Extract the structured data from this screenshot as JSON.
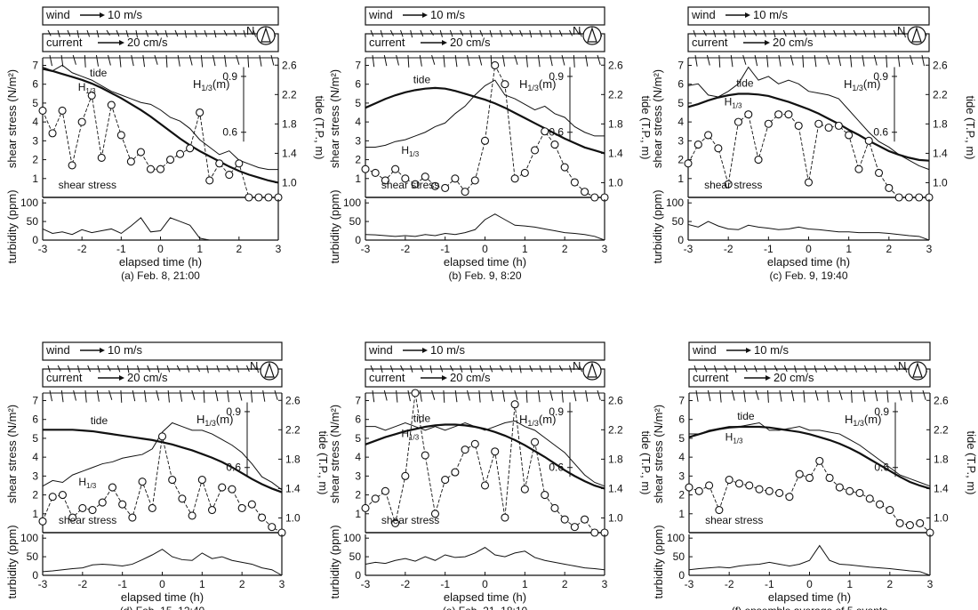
{
  "figure": {
    "wind_label": "wind",
    "wind_scale": "10 m/s",
    "current_label": "current",
    "current_scale": "20 cm/s",
    "north_label": "N",
    "h13_label": "H",
    "h13_sub": "1/3",
    "h13_unit": "(m)",
    "tide_label": "tide",
    "shear_label": "shear stress",
    "y_left_top": "shear stress (N/m²)",
    "y_left_bottom": "turbidity (ppm)",
    "y_right": "tide (T.P., m)",
    "x_label": "elapsed time (h)",
    "x_ticks": [
      "-3",
      "-2",
      "-1",
      "0",
      "1",
      "2",
      "3"
    ],
    "shear_ticks": [
      "1",
      "2",
      "3",
      "4",
      "5",
      "6",
      "7"
    ],
    "turb_ticks": [
      "0",
      "50",
      "100"
    ],
    "tide_ticks": [
      "1.0",
      "1.4",
      "1.8",
      "2.2",
      "2.6"
    ],
    "h13_ticks": [
      "0.9",
      "0.6"
    ]
  },
  "chart_data": [
    {
      "type": "line",
      "caption": "(a) Feb. 8, 21:00",
      "x": [
        -3,
        -2.75,
        -2.5,
        -2.25,
        -2,
        -1.75,
        -1.5,
        -1.25,
        -1,
        -0.75,
        -0.5,
        -0.25,
        0,
        0.25,
        0.5,
        0.75,
        1,
        1.25,
        1.5,
        1.75,
        2,
        2.25,
        2.5,
        2.75,
        3
      ],
      "shear": [
        4.6,
        3.4,
        4.6,
        1.7,
        4.0,
        5.4,
        2.1,
        4.9,
        3.3,
        1.9,
        2.4,
        1.5,
        1.5,
        2.0,
        2.3,
        2.6,
        4.5,
        0.9,
        1.8,
        1.2,
        1.8,
        0,
        0,
        0,
        0
      ],
      "tide": [
        2.55,
        2.52,
        2.48,
        2.44,
        2.4,
        2.35,
        2.29,
        2.22,
        2.15,
        2.07,
        1.99,
        1.9,
        1.8,
        1.7,
        1.6,
        1.51,
        1.43,
        1.36,
        1.29,
        1.22,
        1.16,
        1.11,
        1.07,
        1.03,
        1.0
      ],
      "h13": [
        0.95,
        0.93,
        0.96,
        0.92,
        0.9,
        0.88,
        0.85,
        0.82,
        0.8,
        0.78,
        0.76,
        0.75,
        0.72,
        0.68,
        0.66,
        0.62,
        0.56,
        0.52,
        0.48,
        0.5,
        0.45,
        0.43,
        0.41,
        0.4,
        0.4
      ],
      "turbidity": [
        30,
        18,
        22,
        15,
        28,
        20,
        25,
        30,
        18,
        38,
        60,
        22,
        25,
        60,
        50,
        40,
        5,
        0,
        0,
        0,
        0,
        0,
        0,
        0,
        0
      ],
      "wind_dirs": [
        45,
        60,
        50,
        70,
        55,
        65,
        40,
        50,
        60,
        70,
        55,
        45,
        60,
        50,
        70,
        60,
        55,
        65,
        45,
        50,
        60,
        55,
        65,
        50
      ],
      "current_dirs": [
        120,
        110,
        130,
        100,
        115,
        125,
        105,
        120,
        110,
        130,
        100,
        115,
        125,
        105,
        120,
        110,
        130,
        100,
        115,
        125
      ]
    },
    {
      "type": "line",
      "caption": "(b) Feb. 9, 8:20",
      "x": [
        -3,
        -2.75,
        -2.5,
        -2.25,
        -2,
        -1.75,
        -1.5,
        -1.25,
        -1,
        -0.75,
        -0.5,
        -0.25,
        0,
        0.25,
        0.5,
        0.75,
        1,
        1.25,
        1.5,
        1.75,
        2,
        2.25,
        2.5,
        2.75,
        3
      ],
      "shear": [
        1.5,
        1.3,
        0.9,
        1.5,
        1.0,
        0.7,
        1.1,
        0.6,
        0.5,
        1.0,
        0.3,
        0.9,
        3.0,
        7.0,
        6.0,
        1.0,
        1.3,
        2.5,
        3.5,
        2.8,
        1.6,
        0.8,
        0.3,
        0.0,
        0.0
      ],
      "tide": [
        2.02,
        2.08,
        2.14,
        2.19,
        2.23,
        2.26,
        2.28,
        2.29,
        2.28,
        2.25,
        2.21,
        2.17,
        2.13,
        2.08,
        2.02,
        1.95,
        1.88,
        1.81,
        1.74,
        1.67,
        1.6,
        1.54,
        1.48,
        1.44,
        1.4
      ],
      "h13": [
        0.52,
        0.52,
        0.53,
        0.55,
        0.56,
        0.58,
        0.6,
        0.63,
        0.65,
        0.7,
        0.74,
        0.8,
        0.85,
        0.88,
        0.8,
        0.78,
        0.75,
        0.72,
        0.74,
        0.7,
        0.68,
        0.63,
        0.6,
        0.58,
        0.58
      ],
      "turbidity": [
        15,
        14,
        12,
        10,
        12,
        10,
        15,
        12,
        18,
        15,
        20,
        28,
        55,
        70,
        55,
        40,
        38,
        35,
        30,
        25,
        20,
        18,
        15,
        10,
        0
      ],
      "wind_dirs": [
        50,
        60,
        45,
        55,
        65,
        50,
        40,
        60,
        55,
        45,
        65,
        50,
        60,
        55,
        45,
        50,
        65,
        55,
        60,
        50,
        45,
        55,
        60,
        50
      ],
      "current_dirs": [
        110,
        120,
        125,
        100,
        115,
        130,
        105,
        110,
        120,
        125,
        100,
        115,
        130,
        105,
        110,
        120,
        125,
        100,
        115,
        130
      ]
    },
    {
      "type": "line",
      "caption": "(c) Feb. 9, 19:40",
      "x": [
        -3,
        -2.75,
        -2.5,
        -2.25,
        -2,
        -1.75,
        -1.5,
        -1.25,
        -1,
        -0.75,
        -0.5,
        -0.25,
        0,
        0.25,
        0.5,
        0.75,
        1,
        1.25,
        1.5,
        1.75,
        2,
        2.25,
        2.5,
        2.75,
        3
      ],
      "shear": [
        1.8,
        2.8,
        3.3,
        2.6,
        0.7,
        4.0,
        4.4,
        2.0,
        3.9,
        4.4,
        4.4,
        3.8,
        0.8,
        3.9,
        3.7,
        3.8,
        3.3,
        1.5,
        3.0,
        1.3,
        0.5,
        0.0,
        0.0,
        0.0,
        0.0
      ],
      "tide": [
        2.03,
        2.07,
        2.12,
        2.16,
        2.19,
        2.21,
        2.21,
        2.2,
        2.18,
        2.14,
        2.1,
        2.05,
        2.0,
        1.94,
        1.87,
        1.8,
        1.72,
        1.65,
        1.57,
        1.5,
        1.43,
        1.38,
        1.34,
        1.31,
        1.3
      ],
      "h13": [
        0.85,
        0.86,
        0.8,
        0.79,
        0.82,
        0.86,
        0.95,
        0.88,
        0.9,
        0.86,
        0.88,
        0.86,
        0.82,
        0.81,
        0.8,
        0.78,
        0.72,
        0.66,
        0.6,
        0.55,
        0.52,
        0.48,
        0.45,
        0.42,
        0.4
      ],
      "turbidity": [
        42,
        35,
        50,
        38,
        30,
        28,
        40,
        35,
        32,
        28,
        30,
        35,
        30,
        28,
        25,
        22,
        22,
        20,
        20,
        20,
        18,
        15,
        12,
        10,
        0
      ],
      "wind_dirs": [
        55,
        45,
        60,
        50,
        70,
        60,
        45,
        55,
        65,
        50,
        60,
        45,
        55,
        65,
        50,
        60,
        45,
        55,
        70,
        60,
        50,
        65,
        55,
        45
      ],
      "current_dirs": [
        115,
        125,
        100,
        110,
        130,
        120,
        105,
        115,
        125,
        100,
        110,
        130,
        120,
        105,
        115,
        125,
        100,
        110,
        130,
        120
      ]
    },
    {
      "type": "line",
      "caption": "(d) Feb. 15, 12:40",
      "x": [
        -3,
        -2.75,
        -2.5,
        -2.25,
        -2,
        -1.75,
        -1.5,
        -1.25,
        -1,
        -0.75,
        -0.5,
        -0.25,
        0,
        0.25,
        0.5,
        0.75,
        1,
        1.25,
        1.5,
        1.75,
        2,
        2.25,
        2.5,
        2.75,
        3
      ],
      "shear": [
        0.6,
        1.9,
        2.0,
        0.8,
        1.3,
        1.2,
        1.6,
        2.4,
        1.5,
        0.8,
        2.7,
        1.3,
        5.1,
        2.8,
        1.8,
        0.9,
        2.8,
        1.2,
        2.4,
        2.3,
        1.3,
        1.5,
        0.8,
        0.3,
        0.0
      ],
      "tide": [
        2.2,
        2.2,
        2.2,
        2.2,
        2.19,
        2.18,
        2.16,
        2.14,
        2.12,
        2.1,
        2.08,
        2.06,
        2.03,
        2.0,
        1.96,
        1.92,
        1.87,
        1.82,
        1.76,
        1.69,
        1.61,
        1.53,
        1.46,
        1.4,
        1.35
      ],
      "h13": [
        0.5,
        0.53,
        0.52,
        0.56,
        0.58,
        0.6,
        0.62,
        0.63,
        0.65,
        0.66,
        0.67,
        0.7,
        0.79,
        0.84,
        0.82,
        0.8,
        0.8,
        0.78,
        0.75,
        0.72,
        0.68,
        0.62,
        0.55,
        0.52,
        0.48
      ],
      "turbidity": [
        10,
        12,
        15,
        18,
        20,
        28,
        30,
        28,
        25,
        30,
        42,
        55,
        70,
        50,
        42,
        40,
        60,
        45,
        50,
        40,
        35,
        30,
        20,
        15,
        0
      ],
      "wind_dirs": [
        60,
        45,
        55,
        65,
        50,
        60,
        45,
        55,
        70,
        60,
        50,
        65,
        55,
        45,
        60,
        50,
        70,
        55,
        45,
        60,
        50,
        65,
        55,
        60
      ],
      "current_dirs": [
        120,
        110,
        125,
        105,
        115,
        130,
        100,
        120,
        110,
        125,
        105,
        115,
        130,
        100,
        120,
        110,
        125,
        105,
        115,
        130
      ]
    },
    {
      "type": "line",
      "caption": "(e) Feb. 21, 18:10",
      "x": [
        -3,
        -2.75,
        -2.5,
        -2.25,
        -2,
        -1.75,
        -1.5,
        -1.25,
        -1,
        -0.75,
        -0.5,
        -0.25,
        0,
        0.25,
        0.5,
        0.75,
        1,
        1.25,
        1.5,
        1.75,
        2,
        2.25,
        2.5,
        2.75,
        3
      ],
      "shear": [
        1.3,
        1.8,
        2.2,
        0.5,
        3.0,
        7.4,
        4.1,
        1.0,
        2.8,
        3.2,
        4.4,
        4.7,
        2.5,
        4.3,
        0.8,
        6.8,
        2.3,
        4.8,
        2.0,
        1.3,
        0.7,
        0.3,
        0.7,
        0.0,
        0.0
      ],
      "tide": [
        2.0,
        2.05,
        2.1,
        2.14,
        2.18,
        2.21,
        2.24,
        2.26,
        2.27,
        2.27,
        2.26,
        2.24,
        2.21,
        2.17,
        2.12,
        2.06,
        1.99,
        1.91,
        1.83,
        1.74,
        1.65,
        1.57,
        1.5,
        1.44,
        1.4
      ],
      "h13": [
        0.82,
        0.82,
        0.8,
        0.82,
        0.84,
        0.82,
        0.8,
        0.82,
        0.8,
        0.82,
        0.84,
        0.82,
        0.8,
        0.82,
        0.84,
        0.85,
        0.82,
        0.8,
        0.76,
        0.72,
        0.68,
        0.62,
        0.56,
        0.52,
        0.5
      ],
      "turbidity": [
        30,
        35,
        32,
        40,
        45,
        38,
        50,
        40,
        55,
        48,
        50,
        60,
        75,
        55,
        50,
        60,
        65,
        48,
        40,
        35,
        30,
        25,
        20,
        18,
        15
      ],
      "wind_dirs": [
        50,
        65,
        55,
        45,
        60,
        50,
        70,
        55,
        45,
        60,
        65,
        50,
        55,
        45,
        60,
        70,
        50,
        55,
        65,
        45,
        60,
        50,
        55,
        65
      ],
      "current_dirs": [
        110,
        125,
        105,
        120,
        115,
        130,
        100,
        110,
        125,
        105,
        120,
        115,
        130,
        100,
        110,
        125,
        105,
        120,
        115,
        130
      ]
    },
    {
      "type": "line",
      "caption": "(f) ensemble average of 5 events",
      "x": [
        -3,
        -2.75,
        -2.5,
        -2.25,
        -2,
        -1.75,
        -1.5,
        -1.25,
        -1,
        -0.75,
        -0.5,
        -0.25,
        0,
        0.25,
        0.5,
        0.75,
        1,
        1.25,
        1.5,
        1.75,
        2,
        2.25,
        2.5,
        2.75,
        3
      ],
      "shear": [
        2.4,
        2.2,
        2.5,
        1.2,
        2.8,
        2.6,
        2.5,
        2.3,
        2.2,
        2.1,
        1.9,
        3.1,
        2.9,
        3.8,
        2.9,
        2.4,
        2.2,
        2.1,
        1.8,
        1.5,
        1.2,
        0.5,
        0.4,
        0.5,
        0.0
      ],
      "tide": [
        2.1,
        2.14,
        2.18,
        2.21,
        2.23,
        2.24,
        2.24,
        2.24,
        2.23,
        2.21,
        2.19,
        2.17,
        2.14,
        2.1,
        2.06,
        2.01,
        1.95,
        1.88,
        1.8,
        1.72,
        1.64,
        1.56,
        1.49,
        1.44,
        1.4
      ],
      "h13": [
        0.78,
        0.78,
        0.8,
        0.81,
        0.82,
        0.82,
        0.83,
        0.84,
        0.8,
        0.8,
        0.81,
        0.82,
        0.8,
        0.8,
        0.79,
        0.78,
        0.75,
        0.72,
        0.68,
        0.64,
        0.6,
        0.56,
        0.54,
        0.52,
        0.5
      ],
      "turbidity": [
        15,
        18,
        20,
        22,
        20,
        25,
        28,
        30,
        35,
        30,
        25,
        30,
        40,
        80,
        40,
        30,
        28,
        25,
        22,
        20,
        18,
        15,
        12,
        10,
        0
      ],
      "wind_dirs": [
        55,
        50,
        60,
        45,
        65,
        50,
        55,
        60,
        45,
        50,
        65,
        55,
        60,
        50,
        45,
        55,
        60,
        50,
        65,
        55,
        45,
        60,
        50,
        55
      ],
      "current_dirs": [
        115,
        120,
        105,
        125,
        110,
        130,
        100,
        115,
        120,
        105,
        125,
        110,
        130,
        100,
        115,
        120,
        105,
        125,
        110,
        130
      ]
    }
  ]
}
